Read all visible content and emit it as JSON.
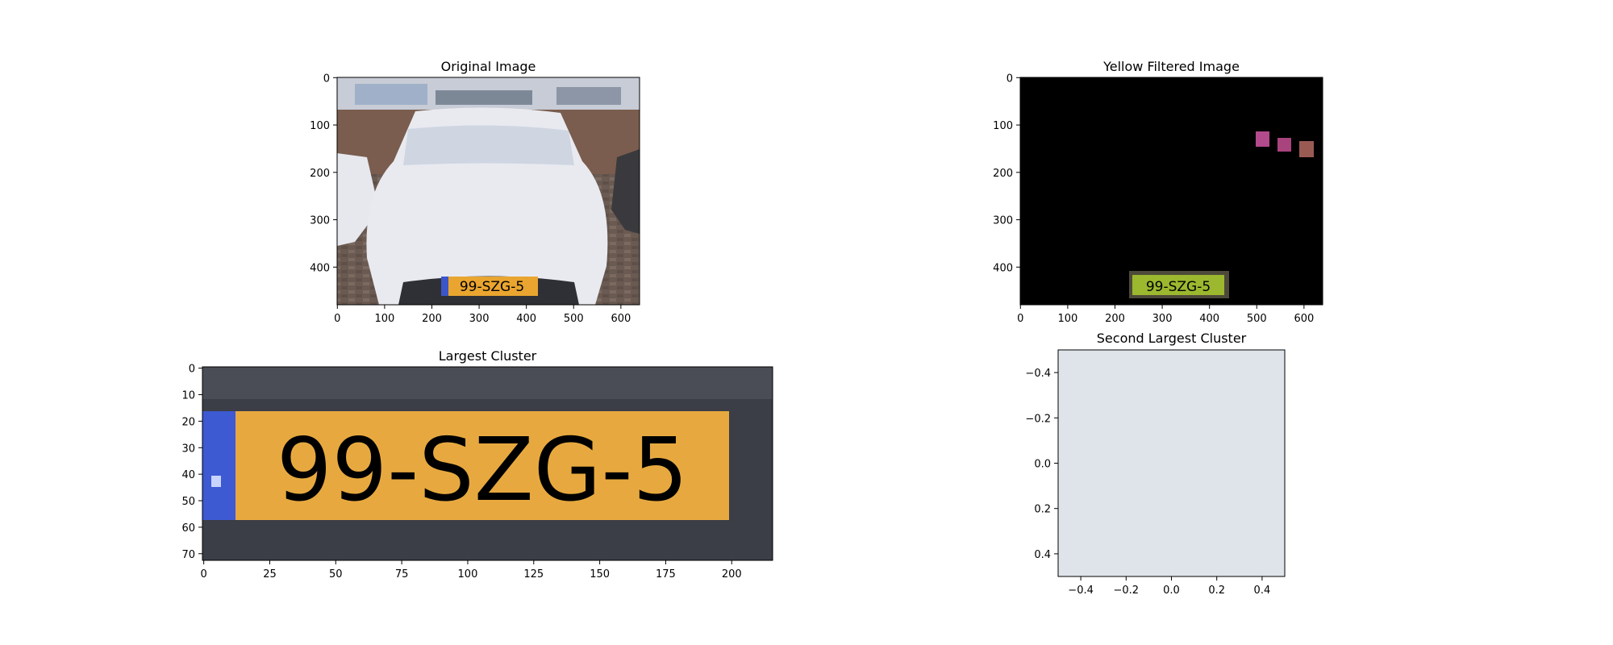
{
  "chart_data": [
    {
      "type": "image",
      "title": "Original Image",
      "xticks": [
        "0",
        "100",
        "200",
        "300",
        "400",
        "500",
        "600"
      ],
      "yticks": [
        "0",
        "100",
        "200",
        "300",
        "400"
      ],
      "xlim": [
        -0.5,
        639.5
      ],
      "ylim": [
        479.5,
        -0.5
      ],
      "plate_text": "99-SZG-5",
      "content": "white car photo with yellow license plate"
    },
    {
      "type": "image",
      "title": "Yellow Filtered Image",
      "xticks": [
        "0",
        "100",
        "200",
        "300",
        "400",
        "500",
        "600"
      ],
      "yticks": [
        "0",
        "100",
        "200",
        "300",
        "400"
      ],
      "xlim": [
        -0.5,
        639.5
      ],
      "ylim": [
        479.5,
        -0.5
      ],
      "plate_text": "99-SZG-5",
      "content": "black background, plate region and small patches retained"
    },
    {
      "type": "image",
      "title": "Largest Cluster",
      "xticks": [
        "0",
        "25",
        "50",
        "75",
        "100",
        "125",
        "150",
        "175",
        "200"
      ],
      "yticks": [
        "0",
        "10",
        "20",
        "30",
        "40",
        "50",
        "60",
        "70"
      ],
      "xlim": [
        -0.5,
        215.5
      ],
      "ylim": [
        72.5,
        -0.5
      ],
      "plate_text": "99-SZG-5",
      "content": "cropped license plate"
    },
    {
      "type": "image",
      "title": "Second Largest Cluster",
      "xticks": [
        "−0.4",
        "−0.2",
        "0.0",
        "0.2",
        "0.4"
      ],
      "yticks": [
        "−0.4",
        "−0.2",
        "0.0",
        "0.2",
        "0.4"
      ],
      "xlim": [
        -0.5,
        0.5
      ],
      "ylim": [
        0.5,
        -0.5
      ],
      "fill_color": "#dfe3ea",
      "content": "single pixel"
    }
  ]
}
